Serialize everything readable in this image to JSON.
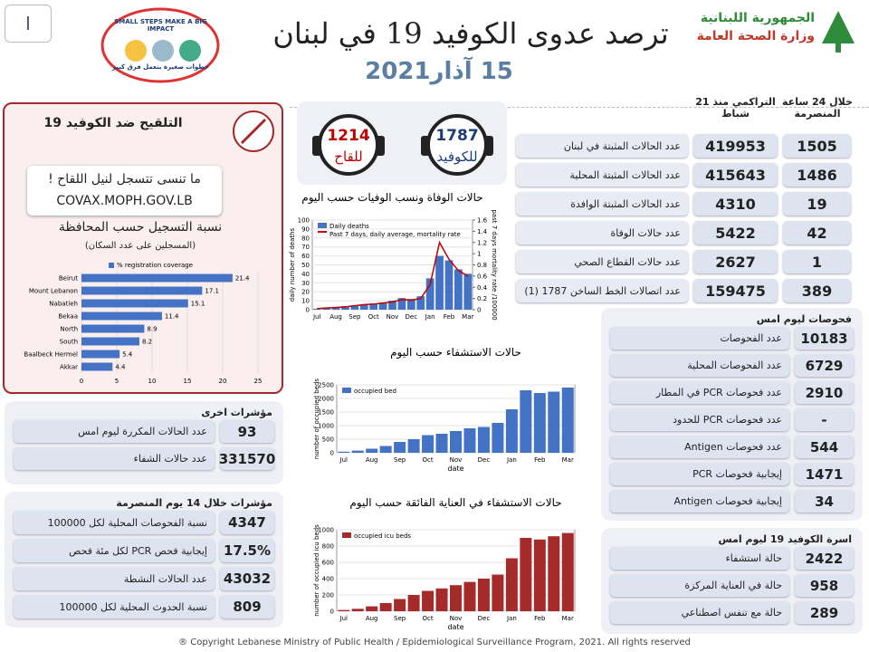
{
  "header": {
    "page": "I",
    "title": "ترصد عدوى الكوفيد 19 في لبنان",
    "date": "15 آذار2021",
    "ministry": "الجمهورية اللبنانية",
    "ministry_sub": "وزارة الصحة العامة",
    "campaign": "SMALL STEPS MAKE A BIG IMPACT",
    "campaign_ar": "خطوات صغيرة بتعمل فرق كبير"
  },
  "hotlines": [
    {
      "number": 1787,
      "label": "للكوفيد"
    },
    {
      "number": 1214,
      "label": "للقاح"
    }
  ],
  "vaccination": {
    "title": "التلقيح ضد الكوفيد 19",
    "reminder": "ما تنسى تتسجل لنيل اللقاح !",
    "url": "COVAX.MOPH.GOV.LB",
    "subtitle": "نسبة التسجيل حسب المحافظة",
    "note": "(المسجلين على عدد السكان)"
  },
  "main_stats": {
    "header_daily": "خلال 24 ساعة المنصرمة",
    "header_cumulative": "التراكمي منذ 21 شباط",
    "rows": [
      {
        "label": "عدد الحالات المثبتة في لبنان",
        "cumulative": 419953,
        "daily": 1505
      },
      {
        "label": "عدد الحالات المثبتة المحلية",
        "cumulative": 415643,
        "daily": 1486
      },
      {
        "label": "عدد الحالات المثبتة الوافدة",
        "cumulative": 4310,
        "daily": 19
      },
      {
        "label": "عدد حالات الوفاة",
        "cumulative": 5422,
        "daily": 42
      },
      {
        "label": "عدد حالات القطاع الصحي",
        "cumulative": 2627,
        "daily": 1
      },
      {
        "label": "عدد اتصالات الخط الساخن 1787 (1)",
        "cumulative": 159475,
        "daily": 389
      }
    ]
  },
  "other_indicators": {
    "title": "مؤشرات اخرى",
    "rows": [
      {
        "label": "عدد الحالات المكررة ليوم امس",
        "value": 93
      },
      {
        "label": "عدد حالات الشفاء",
        "value": 331570
      }
    ]
  },
  "indicators_14_days": {
    "title": "مؤشرات خلال 14 يوم المنصرمة",
    "rows": [
      {
        "label": "نسبة الفحوصات المحلية لكل 100000",
        "value": 4347
      },
      {
        "label": "إيجابية فحص PCR لكل مئة فحص",
        "value": "17.5%"
      },
      {
        "label": "عدد الحالات النشطة",
        "value": 43032
      },
      {
        "label": "نسبة الحدوث المحلية لكل 100000",
        "value": 809
      }
    ]
  },
  "tests": {
    "title": "فحوصات ليوم امس",
    "rows": [
      {
        "label": "عدد الفحوصات",
        "value": 10183
      },
      {
        "label": "عدد الفحوصات المحلية",
        "value": 6729
      },
      {
        "label": "عدد فحوصات PCR في المطار",
        "value": 2910
      },
      {
        "label": "عدد فحوصات PCR للحدود",
        "value": "-"
      },
      {
        "label": "عدد فحوصات Antigen",
        "value": 544
      },
      {
        "label": "إيجابية فحوصات PCR",
        "value": 1471
      },
      {
        "label": "إيجابية فحوصات Antigen",
        "value": 34
      }
    ]
  },
  "covid_family": {
    "title": "اسرة الكوفيد 19 ليوم امس",
    "rows": [
      {
        "label": "حالة استشفاء",
        "value": 2422
      },
      {
        "label": "حالة في العناية المركزة",
        "value": 958
      },
      {
        "label": "حالة مع تنفس اصطناعي",
        "value": 289
      }
    ]
  },
  "footer": "® Copyright Lebanese Ministry of Public Health / Epidemiological Surveillance Program, 2021. All rights reserved",
  "chart_data": [
    {
      "type": "hbar",
      "categories": [
        "Beirut",
        "Mount Lebanon",
        "Nabatieh",
        "Bekaa",
        "North",
        "South",
        "Baalbeck Hermel",
        "Akkar"
      ],
      "series": [
        {
          "name": "% registration coverage",
          "color": "#4472c4",
          "values": [
            21.4,
            17.1,
            15.1,
            11.4,
            8.9,
            8.2,
            5.4,
            4.4
          ]
        }
      ],
      "xlim": [
        0,
        25
      ],
      "xticks": [
        0,
        5,
        10,
        15,
        20,
        25
      ]
    },
    {
      "type": "timeseries",
      "title": "حالات الوفاة ونسب الوفيات حسب اليوم",
      "categories": [
        "Jul",
        null,
        "Aug",
        null,
        "Sep",
        null,
        "Oct",
        null,
        "Nov",
        null,
        "Dec",
        null,
        "Jan",
        null,
        "Feb",
        null,
        "Mar"
      ],
      "series": [
        {
          "name": "Daily deaths",
          "type": "bar",
          "color": "#4472c4",
          "values": [
            1,
            2,
            3,
            4,
            5,
            6,
            7,
            8,
            10,
            13,
            12,
            15,
            35,
            60,
            55,
            45,
            40
          ]
        },
        {
          "name": "Past 7 days, daily average, mortality rate",
          "type": "line",
          "axis": "y2",
          "color": "#c00000",
          "values": [
            0.02,
            0.03,
            0.04,
            0.05,
            0.07,
            0.09,
            0.1,
            0.12,
            0.14,
            0.18,
            0.17,
            0.2,
            0.45,
            1.2,
            0.9,
            0.7,
            0.6
          ]
        }
      ],
      "y_label": "daily number of deaths",
      "y2_label": "past 7 days mortality rate /100000",
      "ylim": [
        0,
        100
      ],
      "yticks": [
        0,
        10,
        20,
        30,
        40,
        50,
        60,
        70,
        80,
        90,
        100
      ],
      "y2lim": [
        0,
        1.6
      ],
      "y2ticks": [
        0,
        0.2,
        0.4,
        0.6,
        0.8,
        1,
        1.2,
        1.4,
        1.6
      ]
    },
    {
      "type": "timeseries",
      "title": "حالات الاستشفاء حسب اليوم",
      "categories": [
        "Jul",
        null,
        "Aug",
        null,
        "Sep",
        null,
        "Oct",
        null,
        "Nov",
        null,
        "Dec",
        null,
        "Jan",
        null,
        "Feb",
        null,
        "Mar"
      ],
      "series": [
        {
          "name": "occupied bed",
          "type": "bar",
          "color": "#4472c4",
          "values": [
            40,
            80,
            150,
            250,
            400,
            500,
            650,
            700,
            800,
            900,
            950,
            1100,
            1600,
            2300,
            2200,
            2250,
            2400
          ]
        }
      ],
      "x_label": "date",
      "y_label": "number of occupied beds",
      "ylim": [
        0,
        2500
      ],
      "yticks": [
        0,
        500,
        1000,
        1500,
        2000,
        2500
      ]
    },
    {
      "type": "timeseries",
      "title": "حالات الاستشفاء في العناية الفائقة حسب اليوم",
      "categories": [
        "Jul",
        null,
        "Aug",
        null,
        "Sep",
        null,
        "Oct",
        null,
        "Nov",
        null,
        "Dec",
        null,
        "Jan",
        null,
        "Feb",
        null,
        "Mar"
      ],
      "series": [
        {
          "name": "occupied icu beds",
          "type": "bar",
          "color": "#a52a2a",
          "values": [
            15,
            30,
            60,
            100,
            150,
            200,
            250,
            280,
            320,
            360,
            400,
            450,
            650,
            900,
            880,
            920,
            960
          ]
        }
      ],
      "x_label": "date",
      "y_label": "number of occupied icu beds",
      "ylim": [
        0,
        1000
      ],
      "yticks": [
        0,
        200,
        400,
        600,
        800,
        1000
      ]
    }
  ]
}
